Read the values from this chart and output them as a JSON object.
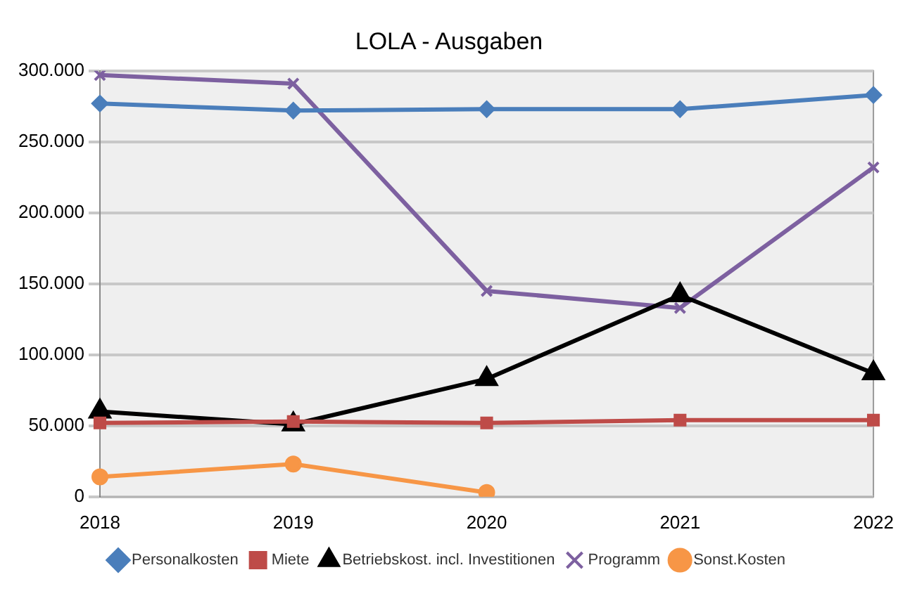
{
  "chart_data": {
    "type": "line",
    "title": "LOLA - Ausgaben",
    "categories": [
      "2018",
      "2019",
      "2020",
      "2021",
      "2022"
    ],
    "series": [
      {
        "name": "Personalkosten",
        "color": "#4a7ebb",
        "marker": "diamond",
        "values": [
          277000,
          272000,
          273000,
          273000,
          283000
        ]
      },
      {
        "name": "Miete",
        "color": "#be4b48",
        "marker": "square",
        "values": [
          52000,
          53000,
          52000,
          54000,
          54000
        ]
      },
      {
        "name": "Betriebskost. incl. Investitionen",
        "color": "#000000",
        "marker": "triangle",
        "values": [
          60000,
          51000,
          83000,
          142000,
          87000
        ]
      },
      {
        "name": "Programm",
        "color": "#7d60a0",
        "marker": "cross",
        "values": [
          297000,
          291000,
          145000,
          133000,
          232000
        ]
      },
      {
        "name": "Sonst.Kosten",
        "color": "#f79646",
        "marker": "circle",
        "values": [
          14000,
          23000,
          3000,
          null,
          null
        ]
      }
    ],
    "ylim": [
      0,
      300000
    ],
    "yticks": [
      {
        "value": 0,
        "label": "0"
      },
      {
        "value": 50000,
        "label": "50.000"
      },
      {
        "value": 100000,
        "label": "100.000"
      },
      {
        "value": 150000,
        "label": "150.000"
      },
      {
        "value": 200000,
        "label": "200.000"
      },
      {
        "value": 250000,
        "label": "250.000"
      },
      {
        "value": 300000,
        "label": "300.000"
      }
    ],
    "grid": "y",
    "legend": "bottom"
  }
}
